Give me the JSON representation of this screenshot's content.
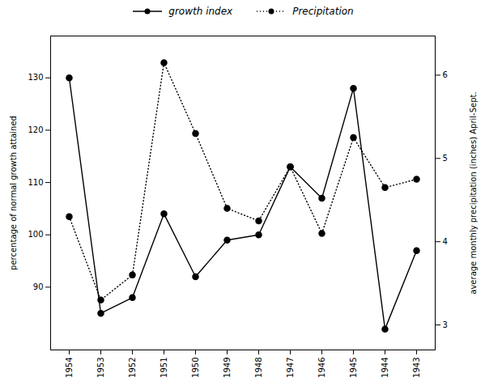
{
  "chart_data": {
    "type": "line",
    "categories": [
      "1954",
      "1953",
      "1952",
      "1951",
      "1950",
      "1949",
      "1948",
      "1947",
      "1946",
      "1945",
      "1944",
      "1943"
    ],
    "series": [
      {
        "name": "growth index",
        "color": "black",
        "line_style": "solid",
        "marker": "o",
        "values": [
          130,
          85,
          88,
          104,
          92,
          99,
          100,
          113,
          107,
          128,
          82,
          97
        ]
      },
      {
        "name": "Precipitation",
        "color": "black",
        "line_style": "dotted",
        "marker": "o",
        "axis": "y2",
        "values": [
          4.3,
          3.3,
          3.6,
          6.15,
          5.3,
          4.4,
          4.25,
          4.9,
          4.1,
          5.25,
          4.65,
          4.75
        ]
      }
    ],
    "ylabel": "percentage of normal growth attained",
    "y2label": "average monthly precipitation (inches) April-Sept.",
    "ylim": [
      78,
      138
    ],
    "yticks": [
      90,
      100,
      110,
      120,
      130
    ],
    "y2lim": [
      2.7,
      6.47
    ],
    "y2ticks": [
      3,
      4,
      5,
      6
    ],
    "legend": "top",
    "grid": false
  }
}
